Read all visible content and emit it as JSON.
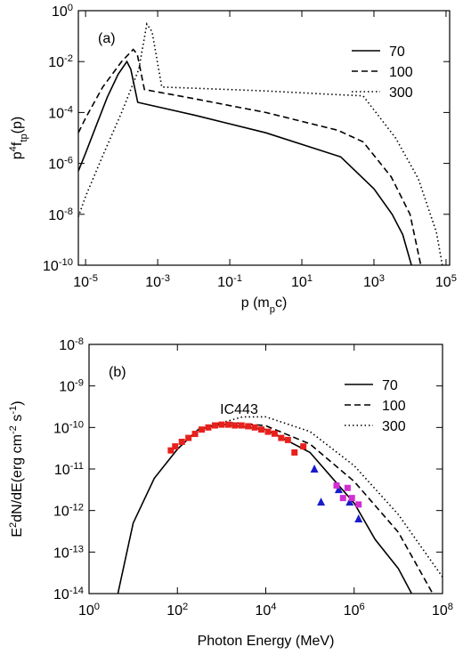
{
  "chart_data": [
    {
      "type": "line",
      "annotation": "(a)",
      "x_label": "p (m_{p}c)",
      "y_label": "p^{4}f_{tp}(p)",
      "log_x": true,
      "log_y": true,
      "legend": "upper right",
      "xlim": [
        6.3e-06,
        126000.0
      ],
      "ylim": [
        1e-10,
        1
      ],
      "xticks": [
        {
          "value": 1e-05,
          "label": "10^{-5}"
        },
        {
          "value": 0.001,
          "label": "10^{-3}"
        },
        {
          "value": 0.1,
          "label": "10^{-1}"
        },
        {
          "value": 10,
          "label": "10^{1}"
        },
        {
          "value": 1000,
          "label": "10^{3}"
        },
        {
          "value": 100000.0,
          "label": "10^{5}"
        }
      ],
      "yticks": [
        {
          "value": 1,
          "label": "10^{0}"
        },
        {
          "value": 0.01,
          "label": "10^{-2}"
        },
        {
          "value": 0.0001,
          "label": "10^{-4}"
        },
        {
          "value": 1e-06,
          "label": "10^{-6}"
        },
        {
          "value": 1e-08,
          "label": "10^{-8}"
        },
        {
          "value": 1e-10,
          "label": "10^{-10}"
        }
      ],
      "series": [
        {
          "name": "70",
          "color": "#000000",
          "dash": "solid",
          "x": [
            6.3e-06,
            1e-05,
            2e-05,
            4e-05,
            8e-05,
            0.00014,
            0.00018,
            0.00028,
            0.01,
            1,
            120,
            1000,
            3200,
            6300,
            11000.0
          ],
          "values": [
            5e-07,
            2.5e-06,
            3.2e-05,
            0.0004,
            0.0032,
            0.01,
            0.005,
            0.00025,
            8e-05,
            1.6e-05,
            1.8e-06,
            1e-07,
            1e-08,
            1.6e-09,
            1e-10
          ]
        },
        {
          "name": "100",
          "color": "#000000",
          "dash": "dashed",
          "x": [
            6.3e-06,
            1e-05,
            3e-05,
            0.0001,
            0.00021,
            0.00027,
            0.00043,
            0.01,
            1,
            100,
            500,
            3000,
            10000.0,
            20000.0
          ],
          "values": [
            1.6e-05,
            6e-05,
            0.001,
            0.01,
            0.03,
            0.02,
            0.0008,
            0.00035,
            0.0001,
            2e-05,
            7e-06,
            3e-07,
            1e-08,
            1e-10
          ]
        },
        {
          "name": "300",
          "color": "#000000",
          "dash": "dotted",
          "x": [
            6.3e-06,
            1e-05,
            3e-05,
            0.0001,
            0.0003,
            0.0005,
            0.0007,
            0.0013,
            0.01,
            1,
            100,
            500,
            4000,
            17000.0,
            54000.0,
            79000.0
          ],
          "values": [
            8e-09,
            5e-08,
            2e-06,
            0.0001,
            0.005,
            0.3,
            0.15,
            0.001,
            0.0009,
            0.0007,
            0.0005,
            0.00045,
            1e-05,
            2.5e-07,
            2e-09,
            1e-10
          ]
        }
      ]
    },
    {
      "type": "line",
      "annotation": "(b)",
      "title": "IC443",
      "x_label": "Photon Energy (MeV)",
      "y_label": "E^{2}dN/dE(erg cm^{-2} s^{-1})",
      "log_x": true,
      "log_y": true,
      "legend": "upper right",
      "xlim": [
        1,
        100000000.0
      ],
      "ylim": [
        1e-14,
        1e-08
      ],
      "xticks": [
        {
          "value": 1,
          "label": "10^{0}"
        },
        {
          "value": 100,
          "label": "10^{2}"
        },
        {
          "value": 10000.0,
          "label": "10^{4}"
        },
        {
          "value": 1000000.0,
          "label": "10^{6}"
        },
        {
          "value": 100000000.0,
          "label": "10^{8}"
        }
      ],
      "yticks": [
        {
          "value": 1e-08,
          "label": "10^{-8}"
        },
        {
          "value": 1e-09,
          "label": "10^{-9}"
        },
        {
          "value": 1e-10,
          "label": "10^{-10}"
        },
        {
          "value": 1e-11,
          "label": "10^{-11}"
        },
        {
          "value": 1e-12,
          "label": "10^{-12}"
        },
        {
          "value": 1e-13,
          "label": "10^{-13}"
        },
        {
          "value": 1e-14,
          "label": "10^{-14}"
        }
      ],
      "series": [
        {
          "name": "70",
          "color": "#000000",
          "dash": "solid",
          "x": [
            4.5,
            10,
            30,
            100,
            300,
            1000,
            10000.0,
            100000.0,
            1000000.0,
            3000000.0,
            10000000.0,
            20000000.0
          ],
          "values": [
            1e-14,
            5e-13,
            6e-12,
            3e-11,
            9e-11,
            1.2e-10,
            9e-11,
            2.5e-11,
            1.5e-12,
            2e-13,
            4e-14,
            1e-14
          ]
        },
        {
          "name": "100",
          "color": "#000000",
          "dash": "dashed",
          "x": [
            300,
            1000,
            2000,
            10000.0,
            100000.0,
            1000000.0,
            10000000.0,
            60000000.0
          ],
          "values": [
            9e-11,
            1.25e-10,
            1.3e-10,
            1.1e-10,
            4e-11,
            5e-12,
            3e-13,
            1e-14
          ]
        },
        {
          "name": "300",
          "color": "#000000",
          "dash": "dotted",
          "x": [
            300,
            1000,
            3000,
            10000.0,
            100000.0,
            1000000.0,
            10000000.0,
            100000000.0
          ],
          "values": [
            9e-11,
            1.3e-10,
            1.8e-10,
            1.8e-10,
            8e-11,
            1.2e-11,
            8e-13,
            2.5e-14
          ]
        }
      ],
      "points": [
        {
          "marker": "square",
          "color": "#e8201c",
          "x": [
            71,
            89,
            126,
            178,
            251,
            355,
            501,
            708,
            1000,
            1413,
            1995,
            2818,
            3981,
            5623,
            7943,
            11220,
            15850,
            22390,
            31620,
            44670,
            70790
          ],
          "values": [
            2.8e-11,
            3.5e-11,
            4.5e-11,
            5.6e-11,
            7e-11,
            8.9e-11,
            1e-10,
            1.12e-10,
            1.17e-10,
            1.17e-10,
            1.12e-10,
            1.12e-10,
            1.07e-10,
            1e-10,
            8.9e-11,
            7.9e-11,
            7.1e-11,
            5.6e-11,
            5e-11,
            2.5e-11,
            3.5e-11
          ]
        },
        {
          "marker": "triangle",
          "color": "#1a1acc",
          "x": [
            126000.0,
            178000.0,
            447000.0,
            794000.0,
            1260000.0
          ],
          "values": [
            1e-11,
            1.6e-12,
            3.2e-12,
            1.6e-12,
            6.3e-13
          ]
        },
        {
          "marker": "square",
          "color": "#d22fd2",
          "x": [
            400000.0,
            560000.0,
            710000.0,
            890000.0,
            1260000.0
          ],
          "values": [
            4e-12,
            2e-12,
            3.5e-12,
            2e-12,
            1.4e-12
          ]
        }
      ]
    }
  ]
}
